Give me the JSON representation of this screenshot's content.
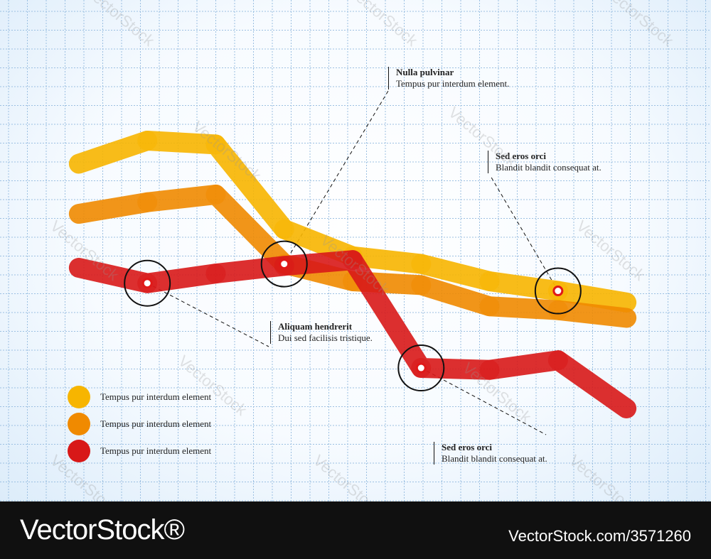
{
  "chart_data": {
    "type": "line",
    "x": [
      0,
      1,
      2,
      3,
      4,
      5,
      6,
      7,
      8
    ],
    "series": [
      {
        "color": "#f7b500",
        "values": [
          0.4,
          1.6,
          1.4,
          -3.0,
          -4.4,
          -4.8,
          -5.7,
          -6.2,
          -6.8
        ]
      },
      {
        "color": "#f08a00",
        "values": [
          -2.2,
          -1.6,
          -1.2,
          -4.8,
          -5.7,
          -5.9,
          -7.0,
          -7.2,
          -7.6
        ]
      },
      {
        "color": "#d81818",
        "values": [
          -5.0,
          -5.8,
          -5.3,
          -4.9,
          -4.6,
          -10.2,
          -10.3,
          -9.8,
          -12.3
        ]
      }
    ],
    "ylim": [
      -13,
      3
    ],
    "xlim": [
      -0.3,
      8.3
    ],
    "grid": true,
    "highlight_markers": [
      {
        "series": 2,
        "index": 1
      },
      {
        "series": 1,
        "index": 3
      },
      {
        "series": 2,
        "index": 5
      },
      {
        "series": 0,
        "index": 7
      }
    ]
  },
  "annotations": [
    {
      "title": "Nulla pulvinar",
      "subtitle": "Tempus pur interdum element."
    },
    {
      "title": "Sed eros orci",
      "subtitle": "Blandit blandit consequat at."
    },
    {
      "title": "Aliquam hendrerit",
      "subtitle": "Dui sed facilisis tristique."
    },
    {
      "title": "Sed eros orci",
      "subtitle": "Blandit blandit consequat at."
    }
  ],
  "legend": [
    {
      "label": "Tempus pur interdum element",
      "color": "#f7b500"
    },
    {
      "label": "Tempus pur interdum element",
      "color": "#f08a00"
    },
    {
      "label": "Tempus pur interdum element",
      "color": "#d81818"
    }
  ],
  "watermark": "VectorStock",
  "footer": {
    "logo": "VectorStock®",
    "url": "VectorStock.com/3571260"
  }
}
